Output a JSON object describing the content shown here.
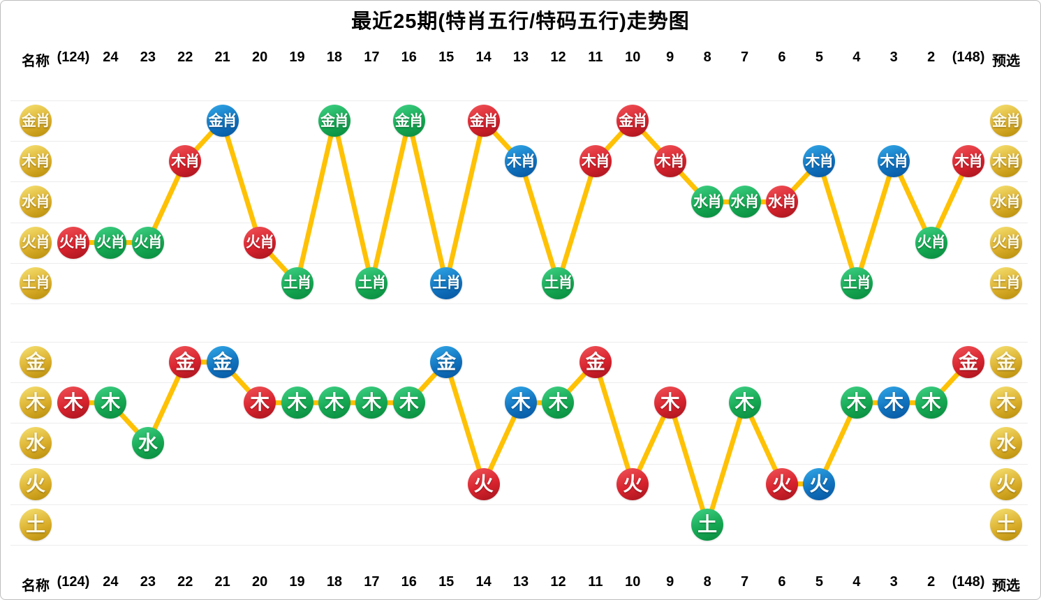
{
  "title": "最近25期(特肖五行/特码五行)走势图",
  "header": {
    "left_label": "名称",
    "columns": [
      "(124)",
      "24",
      "23",
      "22",
      "21",
      "20",
      "19",
      "18",
      "17",
      "16",
      "15",
      "14",
      "13",
      "12",
      "11",
      "10",
      "9",
      "8",
      "7",
      "6",
      "5",
      "4",
      "3",
      "2",
      "(148)"
    ],
    "right_label": "预选"
  },
  "colors": {
    "red": "#d8232e",
    "green": "#16a853",
    "blue": "#1173bf",
    "gold": "#d9ac28",
    "line": "#ffc104",
    "grid": "#ececec",
    "title_text": "#000000"
  },
  "chart_data": [
    {
      "type": "line",
      "name": "special-zodiac-five-elements",
      "title": "特肖五行",
      "y_categories": [
        "金肖",
        "木肖",
        "水肖",
        "火肖",
        "土肖"
      ],
      "x": [
        "(124)",
        "24",
        "23",
        "22",
        "21",
        "20",
        "19",
        "18",
        "17",
        "16",
        "15",
        "14",
        "13",
        "12",
        "11",
        "10",
        "9",
        "8",
        "7",
        "6",
        "5",
        "4",
        "3",
        "2",
        "(148)"
      ],
      "values": [
        "火肖",
        "火肖",
        "火肖",
        "木肖",
        "金肖",
        "火肖",
        "土肖",
        "金肖",
        "土肖",
        "金肖",
        "土肖",
        "金肖",
        "木肖",
        "土肖",
        "木肖",
        "金肖",
        "木肖",
        "水肖",
        "水肖",
        "水肖",
        "木肖",
        "土肖",
        "木肖",
        "火肖",
        "木肖"
      ],
      "point_colors": [
        "red",
        "green",
        "green",
        "red",
        "blue",
        "red",
        "green",
        "green",
        "green",
        "green",
        "blue",
        "red",
        "blue",
        "green",
        "red",
        "red",
        "red",
        "green",
        "green",
        "red",
        "blue",
        "green",
        "blue",
        "green",
        "red"
      ],
      "legend_position": "none",
      "grid": true
    },
    {
      "type": "line",
      "name": "special-code-five-elements",
      "title": "特码五行",
      "y_categories": [
        "金",
        "木",
        "水",
        "火",
        "土"
      ],
      "x": [
        "(124)",
        "24",
        "23",
        "22",
        "21",
        "20",
        "19",
        "18",
        "17",
        "16",
        "15",
        "14",
        "13",
        "12",
        "11",
        "10",
        "9",
        "8",
        "7",
        "6",
        "5",
        "4",
        "3",
        "2",
        "(148)"
      ],
      "values": [
        "木",
        "木",
        "水",
        "金",
        "金",
        "木",
        "木",
        "木",
        "木",
        "木",
        "金",
        "火",
        "木",
        "木",
        "金",
        "火",
        "木",
        "土",
        "木",
        "火",
        "火",
        "木",
        "木",
        "木",
        "金"
      ],
      "point_colors": [
        "red",
        "green",
        "green",
        "red",
        "blue",
        "red",
        "green",
        "green",
        "green",
        "green",
        "blue",
        "red",
        "blue",
        "green",
        "red",
        "red",
        "red",
        "green",
        "green",
        "red",
        "blue",
        "green",
        "blue",
        "green",
        "red"
      ],
      "legend_position": "none",
      "grid": true
    }
  ]
}
